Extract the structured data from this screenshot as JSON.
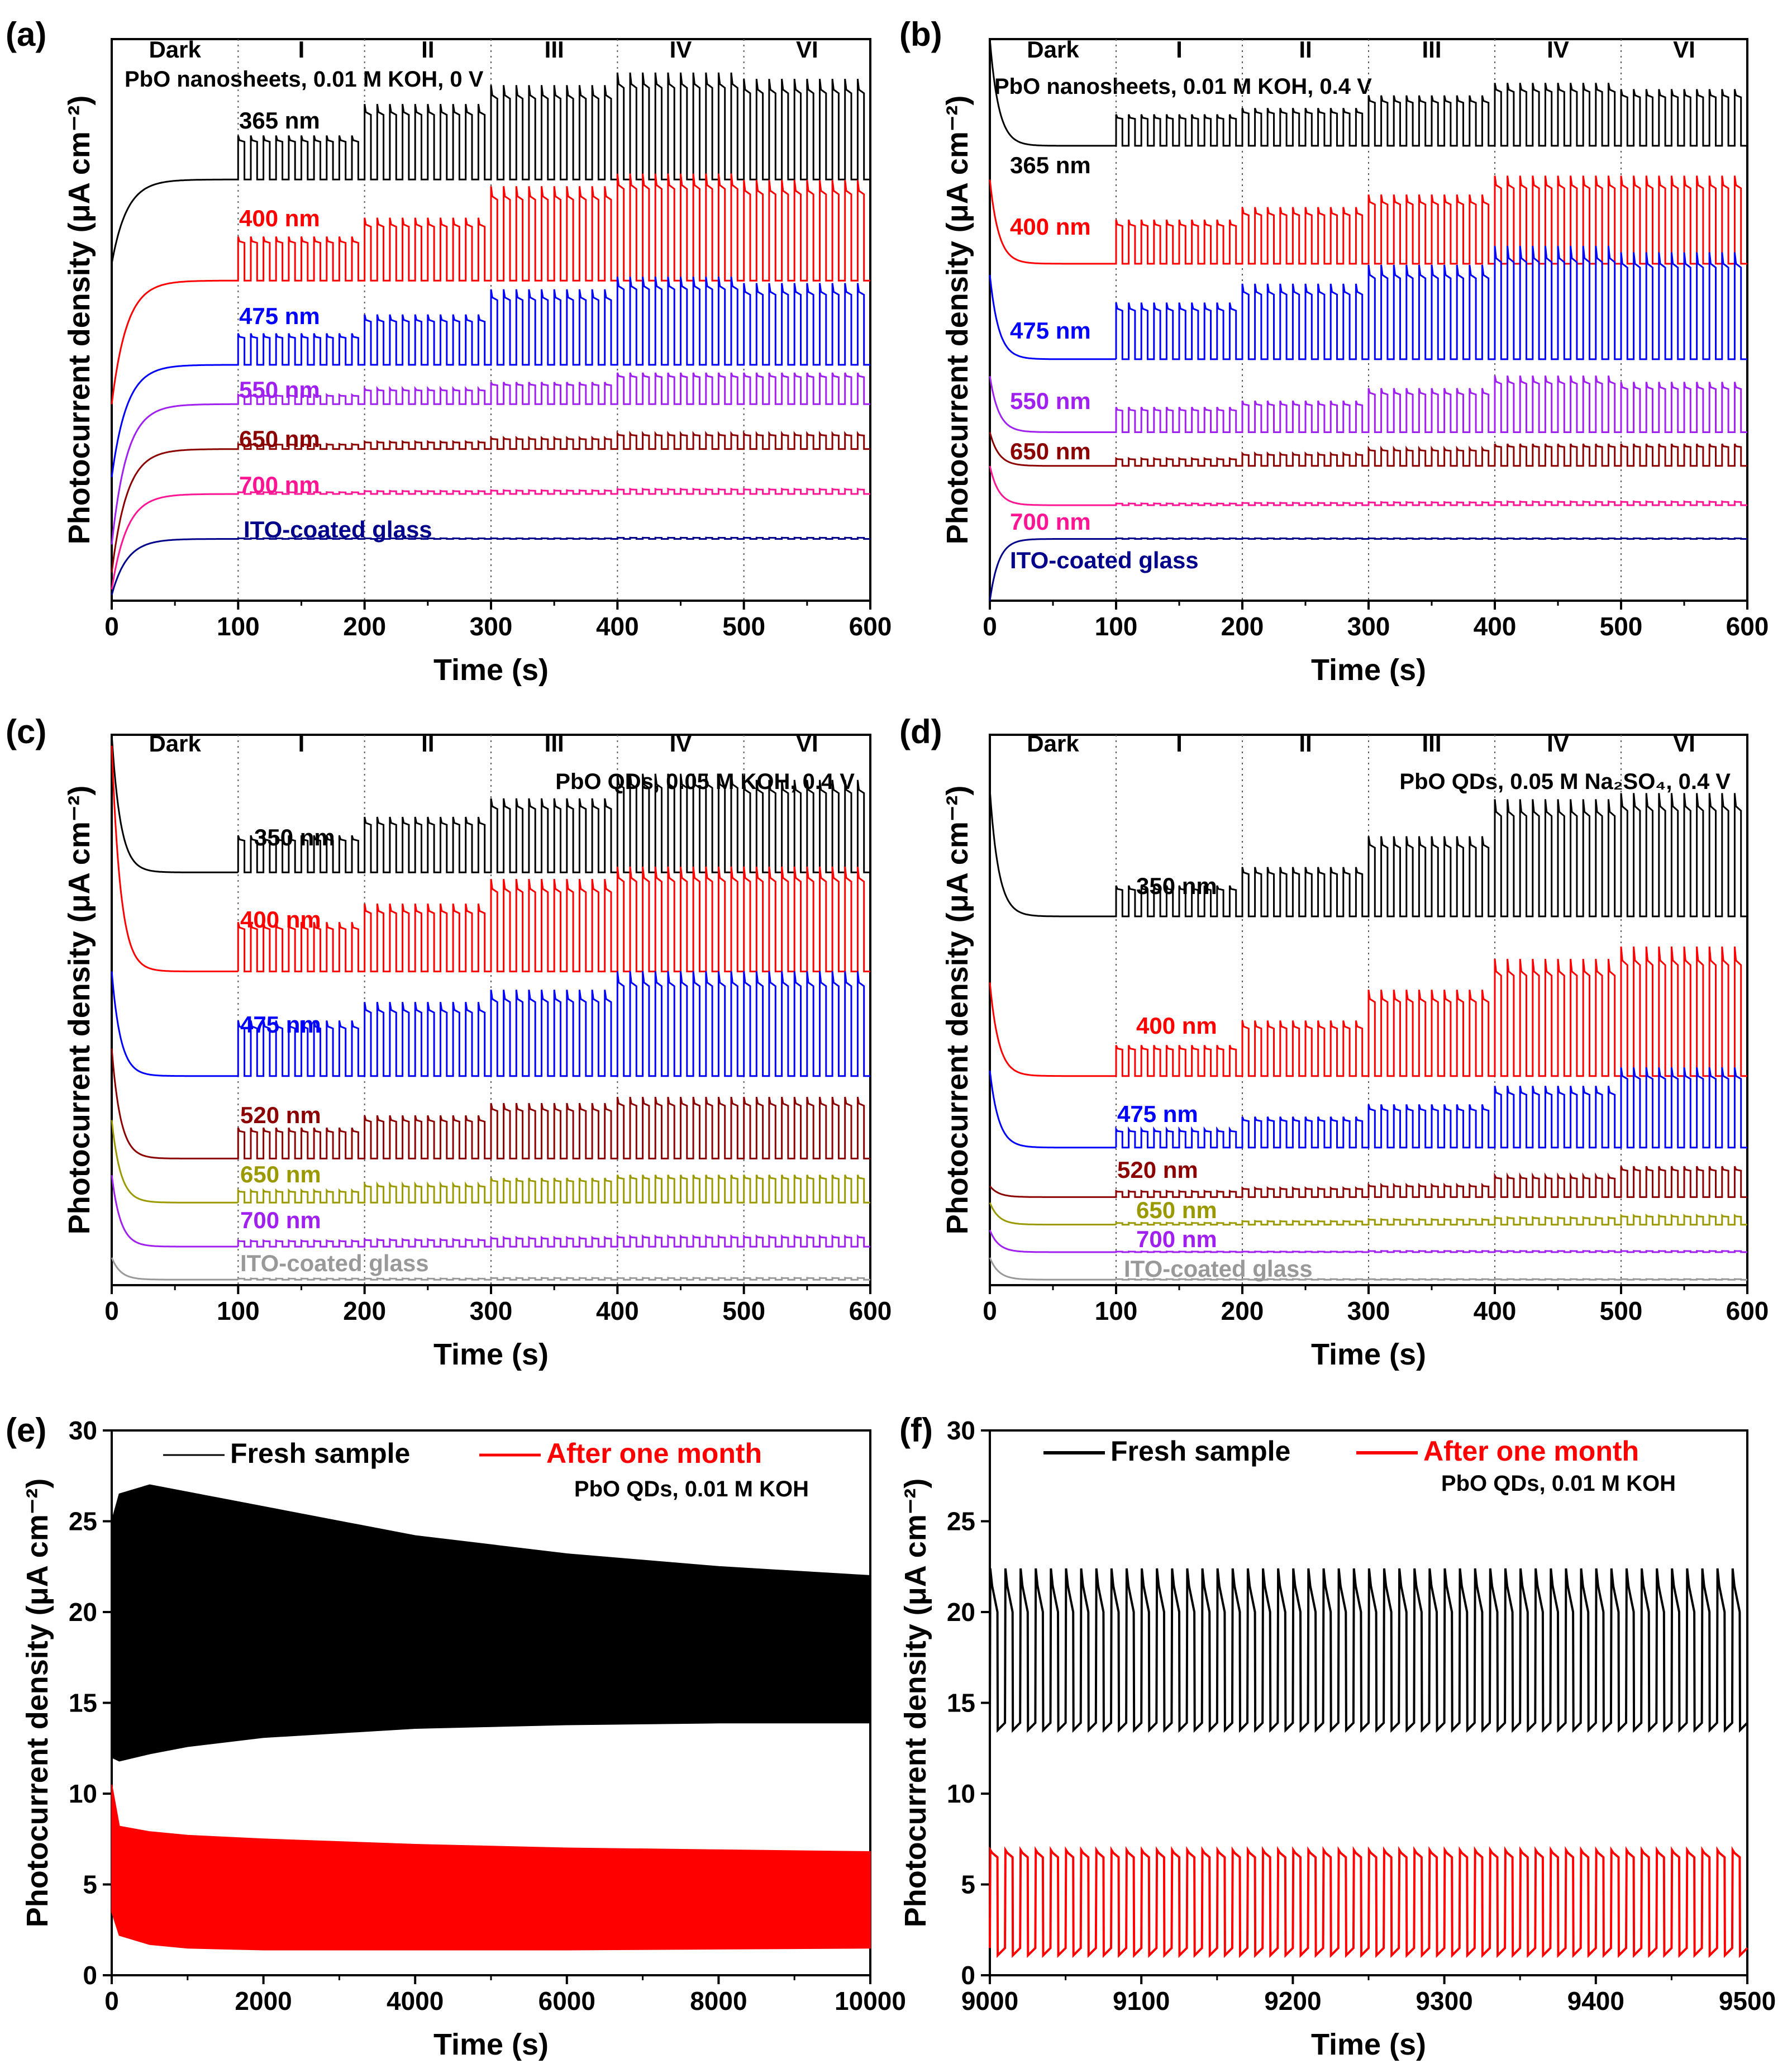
{
  "figure": {
    "panels": [
      {
        "id": "a",
        "label": "(a)",
        "condition": "PbO nanosheets, 0.01 M KOH, 0 V",
        "segments": [
          "Dark",
          "I",
          "II",
          "III",
          "IV",
          "VI"
        ],
        "xticks": [
          "0",
          "100",
          "200",
          "300",
          "400",
          "500",
          "600"
        ],
        "xlabel": "Time (s)",
        "ylabel": "Photocurrent density (μA cm⁻²)"
      },
      {
        "id": "b",
        "label": "(b)",
        "condition": "PbO nanosheets, 0.01 M KOH, 0.4 V",
        "segments": [
          "Dark",
          "I",
          "II",
          "III",
          "IV",
          "VI"
        ],
        "xticks": [
          "0",
          "100",
          "200",
          "300",
          "400",
          "500",
          "600"
        ],
        "xlabel": "Time (s)",
        "ylabel": "Photocurrent density (μA cm⁻²)"
      },
      {
        "id": "c",
        "label": "(c)",
        "condition": "PbO QDs, 0.05 M KOH, 0.4 V",
        "segments": [
          "Dark",
          "I",
          "II",
          "III",
          "IV",
          "VI"
        ],
        "xticks": [
          "0",
          "100",
          "200",
          "300",
          "400",
          "500",
          "600"
        ],
        "xlabel": "Time (s)",
        "ylabel": "Photocurrent density (μA cm⁻²)"
      },
      {
        "id": "d",
        "label": "(d)",
        "condition": "PbO QDs, 0.05 M Na₂SO₄, 0.4 V",
        "segments": [
          "Dark",
          "I",
          "II",
          "III",
          "IV",
          "VI"
        ],
        "xticks": [
          "0",
          "100",
          "200",
          "300",
          "400",
          "500",
          "600"
        ],
        "xlabel": "Time (s)",
        "ylabel": "Photocurrent density (μA cm⁻²)"
      },
      {
        "id": "e",
        "label": "(e)",
        "condition": "PbO QDs, 0.01 M KOH",
        "xticks": [
          "0",
          "2000",
          "4000",
          "6000",
          "8000",
          "10000"
        ],
        "yticks": [
          "0",
          "5",
          "10",
          "15",
          "20",
          "25",
          "30"
        ],
        "xlabel": "Time (s)",
        "ylabel": "Photocurrent density (μA cm⁻²)",
        "legend": [
          "Fresh sample",
          "After one month"
        ]
      },
      {
        "id": "f",
        "label": "(f)",
        "condition": "PbO QDs, 0.01 M KOH",
        "xticks": [
          "9000",
          "9100",
          "9200",
          "9300",
          "9400",
          "9500"
        ],
        "yticks": [
          "0",
          "5",
          "10",
          "15",
          "20",
          "25",
          "30"
        ],
        "xlabel": "Time (s)",
        "ylabel": "Photocurrent density (μA cm⁻²)",
        "legend": [
          "Fresh sample",
          "After one month"
        ]
      }
    ]
  },
  "chart_data": [
    {
      "panel": "a",
      "type": "line",
      "title": "PbO nanosheets, 0.01 M KOH, 0 V",
      "xlabel": "Time (s)",
      "ylabel": "Photocurrent density (μA cm⁻²)",
      "xlim": [
        0,
        600
      ],
      "y_units": "arbitrary (curves vertically offset, no numeric y ticks)",
      "light_on_at": 100,
      "intensity_steps_at": [
        100,
        200,
        300,
        400,
        500
      ],
      "chopping_period_s": 10,
      "series": [
        {
          "name": "365 nm",
          "color": "#000000",
          "dark_level": 0.75,
          "initial": 0.6,
          "amplitudes": [
            0.07,
            0.12,
            0.15,
            0.17,
            0.16
          ]
        },
        {
          "name": "400 nm",
          "color": "#ff0000",
          "dark_level": 0.57,
          "initial": 0.35,
          "amplitudes": [
            0.07,
            0.1,
            0.15,
            0.17,
            0.16
          ]
        },
        {
          "name": "475 nm",
          "color": "#0000ff",
          "dark_level": 0.42,
          "initial": 0.22,
          "amplitudes": [
            0.05,
            0.08,
            0.12,
            0.14,
            0.13
          ]
        },
        {
          "name": "550 nm",
          "color": "#a020f0",
          "dark_level": 0.35,
          "initial": 0.1,
          "amplitudes": [
            0.015,
            0.025,
            0.035,
            0.05,
            0.05
          ]
        },
        {
          "name": "650 nm",
          "color": "#8b0000",
          "dark_level": 0.27,
          "initial": 0.05,
          "amplitudes": [
            0.008,
            0.012,
            0.018,
            0.025,
            0.025
          ]
        },
        {
          "name": "700 nm",
          "color": "#ff1493",
          "dark_level": 0.19,
          "initial": 0.02,
          "amplitudes": [
            0.003,
            0.005,
            0.006,
            0.008,
            0.008
          ]
        },
        {
          "name": "ITO-coated glass",
          "color": "#00008b",
          "dark_level": 0.11,
          "initial": 0.01,
          "amplitudes": [
            0.001,
            0.001,
            0.001,
            0.002,
            0.002
          ]
        }
      ]
    },
    {
      "panel": "b",
      "type": "line",
      "title": "PbO nanosheets, 0.01 M KOH, 0.4 V",
      "xlabel": "Time (s)",
      "ylabel": "Photocurrent density (μA cm⁻²)",
      "xlim": [
        0,
        600
      ],
      "y_units": "arbitrary (curves vertically offset, no numeric y ticks)",
      "light_on_at": 100,
      "intensity_steps_at": [
        100,
        200,
        300,
        400,
        500
      ],
      "chopping_period_s": 10,
      "series": [
        {
          "name": "365 nm",
          "color": "#000000",
          "dark_level": 0.81,
          "initial": 1.0,
          "amplitudes": [
            0.05,
            0.06,
            0.08,
            0.1,
            0.09
          ]
        },
        {
          "name": "400 nm",
          "color": "#ff0000",
          "dark_level": 0.6,
          "initial": 0.75,
          "amplitudes": [
            0.07,
            0.09,
            0.11,
            0.14,
            0.14
          ]
        },
        {
          "name": "475 nm",
          "color": "#0000ff",
          "dark_level": 0.43,
          "initial": 0.58,
          "amplitudes": [
            0.09,
            0.12,
            0.15,
            0.18,
            0.17
          ]
        },
        {
          "name": "550 nm",
          "color": "#a020f0",
          "dark_level": 0.3,
          "initial": 0.4,
          "amplitudes": [
            0.04,
            0.05,
            0.07,
            0.09,
            0.08
          ]
        },
        {
          "name": "650 nm",
          "color": "#8b0000",
          "dark_level": 0.24,
          "initial": 0.3,
          "amplitudes": [
            0.012,
            0.02,
            0.028,
            0.035,
            0.035
          ]
        },
        {
          "name": "700 nm",
          "color": "#ff1493",
          "dark_level": 0.17,
          "initial": 0.24,
          "amplitudes": [
            0.003,
            0.004,
            0.005,
            0.006,
            0.006
          ]
        },
        {
          "name": "ITO-coated glass",
          "color": "#00008b",
          "dark_level": 0.11,
          "initial": 0.0,
          "amplitudes": [
            0.001,
            0.001,
            0.001,
            0.001,
            0.001
          ]
        }
      ]
    },
    {
      "panel": "c",
      "type": "line",
      "title": "PbO QDs, 0.05 M KOH, 0.4 V",
      "xlabel": "Time (s)",
      "ylabel": "Photocurrent density (μA cm⁻²)",
      "xlim": [
        0,
        600
      ],
      "y_units": "arbitrary (curves vertically offset, no numeric y ticks)",
      "light_on_at": 100,
      "intensity_steps_at": [
        100,
        200,
        300,
        400,
        500
      ],
      "chopping_period_s": 10,
      "series": [
        {
          "name": "350 nm",
          "color": "#000000",
          "dark_level": 0.75,
          "initial": 1.0,
          "amplitudes": [
            0.06,
            0.09,
            0.12,
            0.16,
            0.15
          ]
        },
        {
          "name": "400 nm",
          "color": "#ff0000",
          "dark_level": 0.57,
          "initial": 0.98,
          "amplitudes": [
            0.08,
            0.11,
            0.15,
            0.17,
            0.17
          ]
        },
        {
          "name": "475 nm",
          "color": "#0000ff",
          "dark_level": 0.38,
          "initial": 0.57,
          "amplitudes": [
            0.09,
            0.12,
            0.14,
            0.17,
            0.17
          ]
        },
        {
          "name": "520 nm",
          "color": "#8b0000",
          "dark_level": 0.23,
          "initial": 0.43,
          "amplitudes": [
            0.05,
            0.07,
            0.09,
            0.1,
            0.1
          ]
        },
        {
          "name": "650 nm",
          "color": "#9a9a00",
          "dark_level": 0.15,
          "initial": 0.3,
          "amplitudes": [
            0.02,
            0.03,
            0.04,
            0.045,
            0.045
          ]
        },
        {
          "name": "700 nm",
          "color": "#a020f0",
          "dark_level": 0.07,
          "initial": 0.2,
          "amplitudes": [
            0.01,
            0.012,
            0.015,
            0.017,
            0.017
          ]
        },
        {
          "name": "ITO-coated glass",
          "color": "#999999",
          "dark_level": 0.01,
          "initial": 0.05,
          "amplitudes": [
            0.002,
            0.002,
            0.003,
            0.003,
            0.003
          ]
        }
      ]
    },
    {
      "panel": "d",
      "type": "line",
      "title": "PbO QDs, 0.05 M Na₂SO₄, 0.4 V",
      "xlabel": "Time (s)",
      "ylabel": "Photocurrent density (μA cm⁻²)",
      "xlim": [
        0,
        600
      ],
      "y_units": "arbitrary (curves vertically offset, no numeric y ticks)",
      "light_on_at": 100,
      "intensity_steps_at": [
        100,
        200,
        300,
        400,
        500
      ],
      "chopping_period_s": 10,
      "series": [
        {
          "name": "350 nm",
          "color": "#000000",
          "dark_level": 0.67,
          "initial": 0.9,
          "amplitudes": [
            0.05,
            0.08,
            0.13,
            0.19,
            0.2
          ]
        },
        {
          "name": "400 nm",
          "color": "#ff0000",
          "dark_level": 0.38,
          "initial": 0.55,
          "amplitudes": [
            0.05,
            0.09,
            0.14,
            0.19,
            0.21
          ]
        },
        {
          "name": "475 nm",
          "color": "#0000ff",
          "dark_level": 0.25,
          "initial": 0.39,
          "amplitudes": [
            0.03,
            0.05,
            0.07,
            0.1,
            0.13
          ]
        },
        {
          "name": "520 nm",
          "color": "#8b0000",
          "dark_level": 0.16,
          "initial": 0.18,
          "amplitudes": [
            0.01,
            0.015,
            0.02,
            0.035,
            0.05
          ]
        },
        {
          "name": "650 nm",
          "color": "#9a9a00",
          "dark_level": 0.11,
          "initial": 0.15,
          "amplitudes": [
            0.003,
            0.006,
            0.009,
            0.012,
            0.015
          ]
        },
        {
          "name": "700 nm",
          "color": "#a020f0",
          "dark_level": 0.06,
          "initial": 0.1,
          "amplitudes": [
            0.001,
            0.001,
            0.002,
            0.002,
            0.002
          ]
        },
        {
          "name": "ITO-coated glass",
          "color": "#999999",
          "dark_level": 0.01,
          "initial": 0.05,
          "amplitudes": [
            0.001,
            0.001,
            0.001,
            0.001,
            0.001
          ]
        }
      ]
    },
    {
      "panel": "e",
      "type": "area",
      "title": "PbO QDs, 0.01 M KOH",
      "xlabel": "Time (s)",
      "ylabel": "Photocurrent density (μA cm⁻²)",
      "xlim": [
        0,
        10000
      ],
      "ylim": [
        0,
        30
      ],
      "x": [
        0,
        100,
        500,
        1000,
        2000,
        4000,
        6000,
        8000,
        10000
      ],
      "series": [
        {
          "name": "Fresh sample",
          "color": "#000000",
          "upper": [
            25,
            26.5,
            27,
            26.6,
            25.8,
            24.2,
            23.2,
            22.5,
            22
          ],
          "lower": [
            12,
            11.8,
            12.2,
            12.6,
            13.1,
            13.6,
            13.8,
            13.9,
            13.9
          ]
        },
        {
          "name": "After one month",
          "color": "#ff0000",
          "upper": [
            10.5,
            8.2,
            7.9,
            7.7,
            7.5,
            7.2,
            7.0,
            6.9,
            6.8
          ],
          "lower": [
            3.5,
            2.2,
            1.7,
            1.5,
            1.4,
            1.4,
            1.4,
            1.45,
            1.5
          ]
        }
      ]
    },
    {
      "panel": "f",
      "type": "line",
      "title": "PbO QDs, 0.01 M KOH",
      "xlabel": "Time (s)",
      "ylabel": "Photocurrent density (μA cm⁻²)",
      "xlim": [
        9000,
        9500
      ],
      "ylim": [
        0,
        30
      ],
      "chopping_period_s": 10,
      "series": [
        {
          "name": "Fresh sample",
          "color": "#000000",
          "on_peak": 22.4,
          "on_plateau": 20.0,
          "off_level": 13.9
        },
        {
          "name": "After one month",
          "color": "#ff0000",
          "on_peak": 6.9,
          "on_plateau": 6.5,
          "off_level": 1.5
        }
      ]
    }
  ]
}
